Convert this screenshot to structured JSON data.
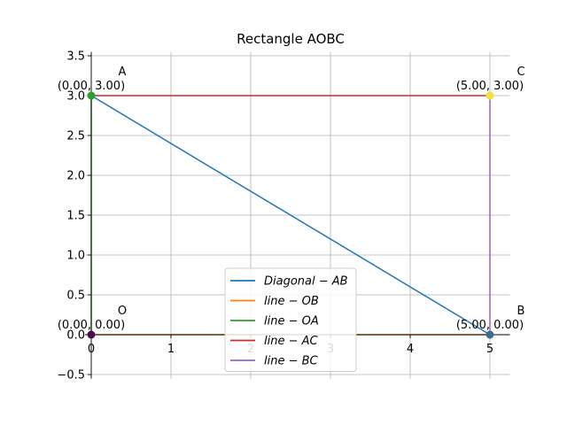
{
  "chart_data": {
    "type": "line",
    "title": "Rectangle AOBC",
    "xlabel": "",
    "ylabel": "",
    "xlim": [
      0,
      5.25
    ],
    "ylim": [
      -0.55,
      3.55
    ],
    "x_ticks": [
      0,
      1,
      2,
      3,
      4,
      5
    ],
    "x_tick_labels": [
      "0",
      "1",
      "2",
      "3",
      "4",
      "5"
    ],
    "y_ticks": [
      -0.5,
      0.0,
      0.5,
      1.0,
      1.5,
      2.0,
      2.5,
      3.0,
      3.5
    ],
    "y_tick_labels": [
      "−0.5",
      "0.0",
      "0.5",
      "1.0",
      "1.5",
      "2.0",
      "2.5",
      "3.0",
      "3.5"
    ],
    "grid": true,
    "legend_position": "bottom-center",
    "series": [
      {
        "name": "Diagonal − AB",
        "color": "#1f77b4",
        "x": [
          0,
          5
        ],
        "y": [
          3,
          0
        ]
      },
      {
        "name": "line − OB",
        "color": "#ff7f0e",
        "x": [
          0,
          5
        ],
        "y": [
          0,
          0
        ]
      },
      {
        "name": "line − OA",
        "color": "#2ca02c",
        "x": [
          0,
          0
        ],
        "y": [
          0,
          3
        ]
      },
      {
        "name": "line − AC",
        "color": "#d62728",
        "x": [
          0,
          5
        ],
        "y": [
          3,
          3
        ]
      },
      {
        "name": "line − BC",
        "color": "#9467bd",
        "x": [
          5,
          5
        ],
        "y": [
          3,
          0
        ]
      }
    ],
    "points": [
      {
        "name": "A",
        "coord_label": "(0.00, 3.00)",
        "x": 0,
        "y": 3,
        "color": "#2ca02c"
      },
      {
        "name": "O",
        "coord_label": "(0.00, 0.00)",
        "x": 0,
        "y": 0,
        "color": "#4a0e4e"
      },
      {
        "name": "B",
        "coord_label": "(5.00, 0.00)",
        "x": 5,
        "y": 0,
        "color": "#3b6e8f"
      },
      {
        "name": "C",
        "coord_label": "(5.00, 3.00)",
        "x": 5,
        "y": 3,
        "color": "#f0e040"
      }
    ]
  }
}
